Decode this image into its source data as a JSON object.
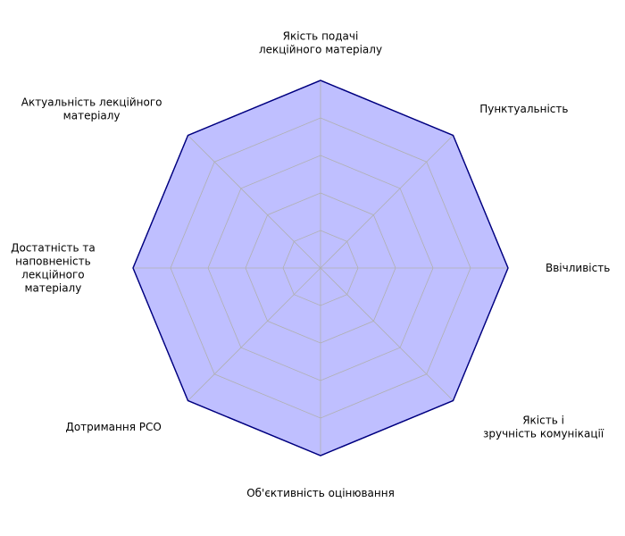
{
  "chart_data": {
    "type": "radar",
    "title": "",
    "axes": [
      [
        "Якість подачі",
        "лекційного матеріалу"
      ],
      [
        "Пунктуальність"
      ],
      [
        "Ввічливість"
      ],
      [
        "Якість і",
        "зручність комунікації"
      ],
      [
        "Об'єктивність оцінювання"
      ],
      [
        "Дотримання РСО"
      ],
      [
        "Достатність та",
        "наповненість",
        "лекційного",
        "матеріалу"
      ],
      [
        "Актуальність лекційного",
        "матеріалу"
      ]
    ],
    "series": [
      {
        "values": [
          5,
          5,
          5,
          5,
          5,
          5,
          5,
          5
        ]
      }
    ],
    "rmax": 5,
    "grid_levels": [
      1,
      2,
      3,
      4,
      5
    ],
    "grid": true,
    "colors": {
      "fill": "#bfbfff",
      "stroke": "#000080",
      "grid": "#b0b0b0"
    }
  }
}
